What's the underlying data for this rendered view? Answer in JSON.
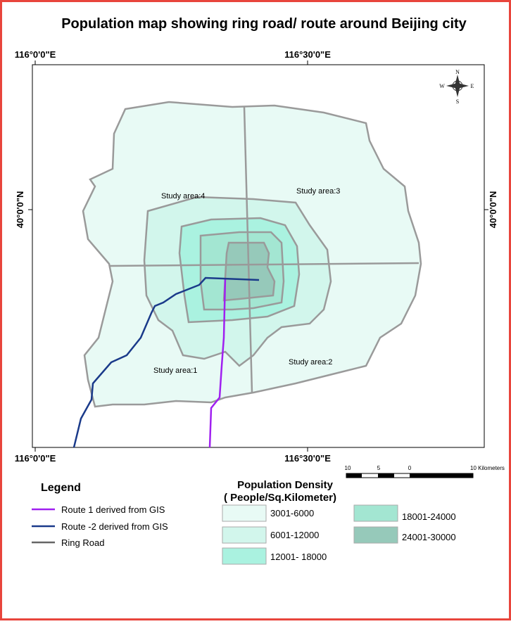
{
  "title": "Population map showing ring road/ route around Beijing city",
  "coordinates": {
    "lon_left": "116°0'0\"E",
    "lon_right": "116°30'0\"E",
    "lat": "40°0'0\"N"
  },
  "study_areas": [
    "Study area:1",
    "Study area:2",
    "Study area:3",
    "Study area:4"
  ],
  "compass": {
    "n": "N",
    "s": "S",
    "e": "E",
    "w": "W"
  },
  "scale_bar": {
    "labels": [
      "10",
      "5",
      "0",
      "10 Kilometers"
    ]
  },
  "legend": {
    "title": "Legend",
    "items": [
      "Route 1 derived from GIS",
      "Route -2 derived from GIS",
      "Ring Road"
    ]
  },
  "density_legend": {
    "title": "Population Density",
    "subtitle": "( People/Sq.Kilometer)",
    "classes": [
      "3001-6000",
      "6001-12000",
      "12001- 18000",
      "18001-24000",
      "24001-30000"
    ]
  }
}
